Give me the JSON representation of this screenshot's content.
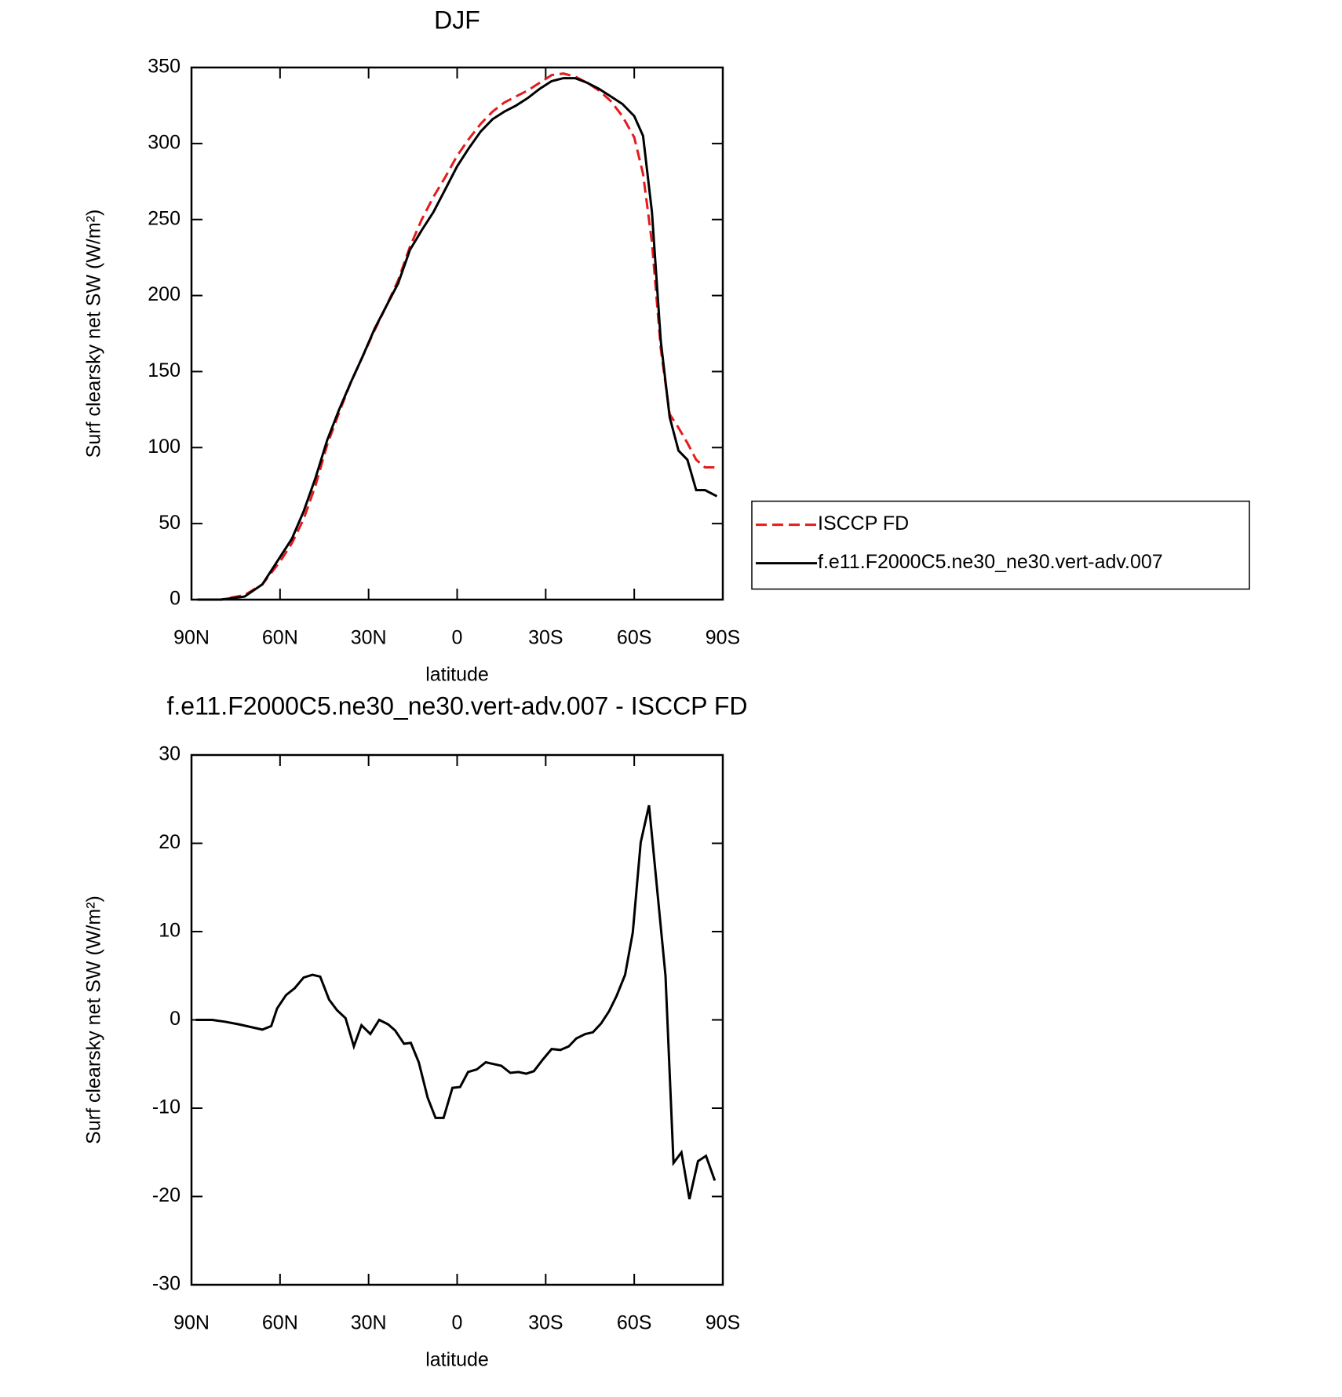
{
  "chart_data": [
    {
      "type": "line",
      "title": "DJF",
      "xlabel": "latitude",
      "ylabel": "Surf clearsky net SW (W/m²)",
      "x": [
        88,
        80,
        72,
        66,
        60,
        56,
        52,
        48,
        44,
        40,
        36,
        32,
        28,
        24,
        20,
        16,
        12,
        8,
        4,
        0,
        -4,
        -8,
        -12,
        -16,
        -20,
        -24,
        -28,
        -32,
        -36,
        -40,
        -44,
        -48,
        -52,
        -56,
        -60,
        -63,
        -66,
        -69,
        -72,
        -75,
        -78,
        -81,
        -84,
        -88
      ],
      "series": [
        {
          "name": "ISCCP FD",
          "color": "#e41a1c",
          "style": "dashed",
          "values": [
            0,
            0,
            3,
            10,
            25,
            37,
            53,
            75,
            102,
            123,
            143,
            160,
            177,
            193,
            210,
            232,
            250,
            265,
            278,
            292,
            303,
            313,
            321,
            327,
            331,
            335,
            340,
            345,
            346,
            344,
            340,
            335,
            328,
            318,
            304,
            280,
            235,
            165,
            122,
            113,
            103,
            92,
            87,
            87
          ]
        },
        {
          "name": "f.e11.F2000C5.ne30_ne30.vert-adv.007",
          "color": "#000000",
          "style": "solid",
          "values": [
            0,
            0,
            2,
            10,
            28,
            40,
            58,
            80,
            105,
            125,
            143,
            160,
            178,
            193,
            208,
            230,
            243,
            255,
            270,
            285,
            297,
            308,
            316,
            321,
            325,
            330,
            336,
            341,
            343,
            343,
            340,
            336,
            331,
            326,
            318,
            305,
            255,
            170,
            120,
            98,
            92,
            72,
            72,
            68
          ]
        }
      ],
      "xlim": [
        90,
        -90
      ],
      "xticks": [
        {
          "value": 90,
          "label": "90N"
        },
        {
          "value": 60,
          "label": "60N"
        },
        {
          "value": 30,
          "label": "30N"
        },
        0,
        {
          "value": -30,
          "label": "30S"
        },
        {
          "value": -60,
          "label": "60S"
        },
        {
          "value": -90,
          "label": "90S"
        }
      ],
      "ylim": [
        0,
        350
      ],
      "yticks": [
        0,
        50,
        100,
        150,
        200,
        250,
        300,
        350
      ],
      "legend": "outside-right"
    },
    {
      "type": "line",
      "title": "f.e11.F2000C5.ne30_ne30.vert-adv.007 - ISCCP FD",
      "xlabel": "latitude",
      "ylabel": "Surf clearsky net SW (W/m²)",
      "x": [
        88.5,
        83,
        78.7,
        74,
        70,
        66,
        63,
        61,
        58,
        55,
        52,
        49,
        46.4,
        43.4,
        40.7,
        37.8,
        35,
        32.4,
        29.4,
        26.4,
        23.4,
        21,
        18,
        15.7,
        13,
        10,
        7.3,
        4.6,
        1.6,
        -1,
        -3.7,
        -6.7,
        -9.7,
        -12.4,
        -15,
        -18,
        -20.8,
        -23.4,
        -26,
        -29,
        -32,
        -35,
        -37.8,
        -40.4,
        -43.4,
        -46,
        -48.8,
        -51.5,
        -54,
        -56.9,
        -59.5,
        -62.2,
        -65,
        -70.6,
        -73.3,
        -76,
        -78.7,
        -81.6,
        -84.3,
        -87.3
      ],
      "series": [
        {
          "color": "#000000",
          "style": "solid",
          "values": [
            0,
            0,
            -0.2,
            -0.5,
            -0.8,
            -1.1,
            -0.7,
            1.3,
            2.8,
            3.6,
            4.8,
            5.1,
            4.9,
            2.3,
            1.1,
            0.2,
            -3,
            -0.6,
            -1.6,
            0,
            -0.5,
            -1.2,
            -2.7,
            -2.6,
            -4.8,
            -8.8,
            -11.1,
            -11.1,
            -7.7,
            -7.6,
            -5.9,
            -5.6,
            -4.8,
            -5,
            -5.2,
            -6,
            -5.9,
            -6.1,
            -5.8,
            -4.5,
            -3.3,
            -3.4,
            -3,
            -2.1,
            -1.6,
            -1.4,
            -0.4,
            1,
            2.7,
            5.1,
            9.9,
            20.1,
            24.3,
            5,
            -16.2,
            -15,
            -20.3,
            -16,
            -15.4,
            -18.2
          ]
        }
      ],
      "xlim": [
        90,
        -90
      ],
      "xticks": [
        {
          "value": 90,
          "label": "90N"
        },
        {
          "value": 60,
          "label": "60N"
        },
        {
          "value": 30,
          "label": "30N"
        },
        0,
        {
          "value": -30,
          "label": "30S"
        },
        {
          "value": -60,
          "label": "60S"
        },
        {
          "value": -90,
          "label": "90S"
        }
      ],
      "ylim": [
        -30,
        30
      ],
      "yticks": [
        -30,
        -20,
        -10,
        0,
        10,
        20,
        30
      ]
    }
  ]
}
